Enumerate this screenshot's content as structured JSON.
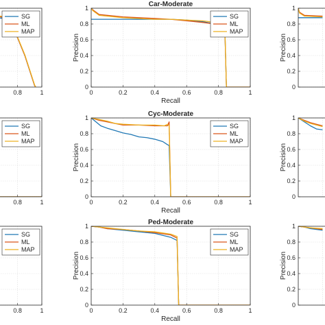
{
  "colors": {
    "sg": "#1f77b4",
    "ml": "#d95319",
    "map": "#edb120",
    "axis": "#262626",
    "grid": "#dcdcdc"
  },
  "chart_data": [
    {
      "type": "line",
      "title": "",
      "xlabel": "",
      "ylabel": "",
      "xlim": [
        0,
        1
      ],
      "ylim": [
        0,
        1
      ],
      "grid": true,
      "legend": "top-right",
      "xticks": [
        "0.8",
        "1"
      ],
      "yticks": [],
      "series": [
        {
          "name": "SG",
          "color": "#1f77b4",
          "x": [
            0.62,
            0.7,
            0.74,
            0.78,
            0.86,
            0.94,
            0.95
          ],
          "y": [
            0.88,
            0.87,
            0.8,
            0.7,
            0.4,
            0.02,
            0.0
          ]
        },
        {
          "name": "ML",
          "color": "#d95319",
          "x": [
            0.62,
            0.7,
            0.74,
            0.78,
            0.86,
            0.94,
            0.95
          ],
          "y": [
            0.9,
            0.88,
            0.8,
            0.7,
            0.4,
            0.02,
            0.0
          ]
        },
        {
          "name": "MAP",
          "color": "#edb120",
          "x": [
            0.62,
            0.7,
            0.74,
            0.78,
            0.86,
            0.94,
            0.95
          ],
          "y": [
            0.91,
            0.89,
            0.81,
            0.71,
            0.41,
            0.03,
            0.0
          ]
        }
      ]
    },
    {
      "type": "line",
      "title": "Car-Moderate",
      "xlabel": "Recall",
      "ylabel": "Precision",
      "xlim": [
        0,
        1
      ],
      "ylim": [
        0,
        1
      ],
      "grid": true,
      "legend": "top-right",
      "xticks": [
        "0",
        "0.2",
        "0.4",
        "0.6",
        "0.8",
        "1"
      ],
      "yticks": [
        "0",
        "0.2",
        "0.4",
        "0.6",
        "0.8",
        "1"
      ],
      "series": [
        {
          "name": "SG",
          "color": "#1f77b4",
          "x": [
            0.0,
            0.2,
            0.4,
            0.5,
            0.6,
            0.7,
            0.78,
            0.84,
            0.85
          ],
          "y": [
            0.86,
            0.86,
            0.86,
            0.86,
            0.85,
            0.83,
            0.8,
            0.75,
            0.0
          ]
        },
        {
          "name": "ML",
          "color": "#d95319",
          "x": [
            0.0,
            0.01,
            0.05,
            0.2,
            0.4,
            0.5,
            0.6,
            0.7,
            0.78,
            0.84,
            0.85,
            1.0
          ],
          "y": [
            1.0,
            0.98,
            0.92,
            0.89,
            0.87,
            0.86,
            0.84,
            0.82,
            0.8,
            0.76,
            0.0,
            0.0
          ]
        },
        {
          "name": "MAP",
          "color": "#edb120",
          "x": [
            0.0,
            0.01,
            0.05,
            0.2,
            0.4,
            0.5,
            0.6,
            0.7,
            0.78,
            0.84,
            0.85,
            1.0
          ],
          "y": [
            1.0,
            0.97,
            0.91,
            0.88,
            0.86,
            0.86,
            0.85,
            0.84,
            0.82,
            0.8,
            0.0,
            0.0
          ]
        }
      ]
    },
    {
      "type": "line",
      "title": "",
      "xlabel": "",
      "ylabel": "Precision",
      "xlim": [
        0,
        1
      ],
      "ylim": [
        0,
        1
      ],
      "grid": true,
      "legend": "top-right",
      "xticks": [],
      "yticks": [
        "0",
        "0.2",
        "0.4",
        "0.6",
        "0.8",
        "1"
      ],
      "series": [
        {
          "name": "SG",
          "color": "#1f77b4",
          "x": [
            0.0,
            0.2
          ],
          "y": [
            0.88,
            0.88
          ]
        },
        {
          "name": "ML",
          "color": "#d95319",
          "x": [
            0.0,
            0.01,
            0.05,
            0.2
          ],
          "y": [
            1.0,
            0.95,
            0.91,
            0.9
          ]
        },
        {
          "name": "MAP",
          "color": "#edb120",
          "x": [
            0.0,
            0.01,
            0.05,
            0.2
          ],
          "y": [
            1.0,
            0.94,
            0.9,
            0.89
          ]
        }
      ]
    },
    {
      "type": "line",
      "title": "",
      "xlabel": "",
      "ylabel": "",
      "xlim": [
        0,
        1
      ],
      "ylim": [
        0,
        1
      ],
      "grid": true,
      "legend": "top-right",
      "xticks": [
        "0.8",
        "1"
      ],
      "yticks": [],
      "series": [
        {
          "name": "SG",
          "color": "#1f77b4",
          "x": [
            0.6,
            1.0
          ],
          "y": [
            0.0,
            0.0
          ]
        },
        {
          "name": "ML",
          "color": "#d95319",
          "x": [
            0.6,
            1.0
          ],
          "y": [
            0.0,
            0.0
          ]
        },
        {
          "name": "MAP",
          "color": "#edb120",
          "x": [
            0.6,
            1.0
          ],
          "y": [
            0.0,
            0.0
          ]
        }
      ]
    },
    {
      "type": "line",
      "title": "Cyc-Moderate",
      "xlabel": "Recall",
      "ylabel": "Precision",
      "xlim": [
        0,
        1
      ],
      "ylim": [
        0,
        1
      ],
      "grid": true,
      "legend": "top-right",
      "xticks": [
        "0",
        "0.2",
        "0.4",
        "0.6",
        "0.8",
        "1"
      ],
      "yticks": [
        "0",
        "0.2",
        "0.4",
        "0.6",
        "0.8",
        "1"
      ],
      "series": [
        {
          "name": "SG",
          "color": "#1f77b4",
          "x": [
            0.0,
            0.03,
            0.06,
            0.1,
            0.15,
            0.2,
            0.25,
            0.3,
            0.35,
            0.4,
            0.45,
            0.48,
            0.49,
            0.5
          ],
          "y": [
            1.0,
            0.95,
            0.9,
            0.87,
            0.84,
            0.81,
            0.79,
            0.76,
            0.75,
            0.73,
            0.7,
            0.66,
            0.65,
            0.0
          ]
        },
        {
          "name": "ML",
          "color": "#d95319",
          "x": [
            0.0,
            0.05,
            0.1,
            0.15,
            0.2,
            0.3,
            0.4,
            0.48,
            0.49,
            0.5,
            1.0
          ],
          "y": [
            1.0,
            0.97,
            0.95,
            0.93,
            0.91,
            0.91,
            0.9,
            0.9,
            0.95,
            0.0,
            0.0
          ]
        },
        {
          "name": "MAP",
          "color": "#edb120",
          "x": [
            0.0,
            0.05,
            0.1,
            0.15,
            0.2,
            0.3,
            0.4,
            0.46,
            0.48,
            0.49,
            0.5,
            1.0
          ],
          "y": [
            1.0,
            0.98,
            0.96,
            0.93,
            0.92,
            0.91,
            0.91,
            0.9,
            0.92,
            0.9,
            0.0,
            0.0
          ]
        }
      ]
    },
    {
      "type": "line",
      "title": "",
      "xlabel": "",
      "ylabel": "Precision",
      "xlim": [
        0,
        1
      ],
      "ylim": [
        0,
        1
      ],
      "grid": true,
      "legend": "top-right",
      "xticks": [],
      "yticks": [
        "0",
        "0.2",
        "0.4",
        "0.6",
        "0.8",
        "1"
      ],
      "series": [
        {
          "name": "SG",
          "color": "#1f77b4",
          "x": [
            0.0,
            0.05,
            0.1,
            0.15,
            0.2
          ],
          "y": [
            1.0,
            0.95,
            0.9,
            0.86,
            0.85
          ]
        },
        {
          "name": "ML",
          "color": "#d95319",
          "x": [
            0.0,
            0.05,
            0.1,
            0.15,
            0.2
          ],
          "y": [
            1.0,
            0.97,
            0.94,
            0.92,
            0.9
          ]
        },
        {
          "name": "MAP",
          "color": "#edb120",
          "x": [
            0.0,
            0.05,
            0.1,
            0.15,
            0.2
          ],
          "y": [
            1.0,
            0.96,
            0.93,
            0.91,
            0.89
          ]
        }
      ]
    },
    {
      "type": "line",
      "title": "",
      "xlabel": "",
      "ylabel": "",
      "xlim": [
        0,
        1
      ],
      "ylim": [
        0,
        1
      ],
      "grid": true,
      "legend": "top-right",
      "xticks": [
        "0.8",
        "1"
      ],
      "yticks": [],
      "series": []
    },
    {
      "type": "line",
      "title": "Ped-Moderate",
      "xlabel": "Recall",
      "ylabel": "Precision",
      "xlim": [
        0,
        1
      ],
      "ylim": [
        0,
        1
      ],
      "grid": true,
      "legend": "top-right",
      "xticks": [
        "0",
        "0.2",
        "0.4",
        "0.6",
        "0.8",
        "1"
      ],
      "yticks": [
        "0",
        "0.2",
        "0.4",
        "0.6",
        "0.8",
        "1"
      ],
      "series": [
        {
          "name": "SG",
          "color": "#1f77b4",
          "x": [
            0.0,
            0.05,
            0.1,
            0.2,
            0.3,
            0.4,
            0.5,
            0.54,
            0.55
          ],
          "y": [
            1.0,
            0.99,
            0.97,
            0.95,
            0.93,
            0.91,
            0.86,
            0.82,
            0.0
          ]
        },
        {
          "name": "ML",
          "color": "#d95319",
          "x": [
            0.0,
            0.05,
            0.1,
            0.2,
            0.3,
            0.4,
            0.5,
            0.54,
            0.55,
            1.0
          ],
          "y": [
            1.0,
            0.99,
            0.97,
            0.96,
            0.94,
            0.92,
            0.89,
            0.85,
            0.0,
            0.0
          ]
        },
        {
          "name": "MAP",
          "color": "#edb120",
          "x": [
            0.0,
            0.05,
            0.1,
            0.2,
            0.3,
            0.4,
            0.5,
            0.54,
            0.55,
            1.0
          ],
          "y": [
            1.0,
            0.99,
            0.98,
            0.96,
            0.94,
            0.93,
            0.9,
            0.87,
            0.0,
            0.0
          ]
        }
      ]
    },
    {
      "type": "line",
      "title": "",
      "xlabel": "",
      "ylabel": "Precision",
      "xlim": [
        0,
        1
      ],
      "ylim": [
        0,
        1
      ],
      "grid": true,
      "legend": "top-right",
      "xticks": [],
      "yticks": [
        "0",
        "0.2",
        "0.4",
        "0.6",
        "0.8",
        "1"
      ],
      "series": [
        {
          "name": "SG",
          "color": "#1f77b4",
          "x": [
            0.0,
            0.05,
            0.1,
            0.2
          ],
          "y": [
            1.0,
            0.99,
            0.97,
            0.95
          ]
        },
        {
          "name": "ML",
          "color": "#d95319",
          "x": [
            0.0,
            0.05,
            0.1,
            0.2
          ],
          "y": [
            1.0,
            0.99,
            0.98,
            0.96
          ]
        },
        {
          "name": "MAP",
          "color": "#edb120",
          "x": [
            0.0,
            0.05,
            0.1,
            0.2
          ],
          "y": [
            1.0,
            0.99,
            0.98,
            0.97
          ]
        }
      ]
    }
  ]
}
